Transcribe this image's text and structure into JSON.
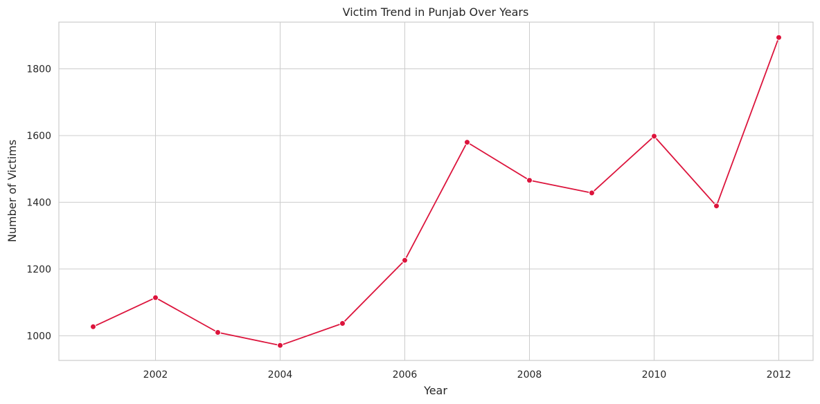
{
  "chart_data": {
    "type": "line",
    "title": "Victim Trend in Punjab Over Years",
    "xlabel": "Year",
    "ylabel": "Number of Victims",
    "x": [
      2001,
      2002,
      2003,
      2004,
      2005,
      2006,
      2007,
      2008,
      2009,
      2010,
      2011,
      2012
    ],
    "series": [
      {
        "values": [
          1027,
          1114,
          1010,
          971,
          1037,
          1226,
          1580,
          1466,
          1428,
          1598,
          1389,
          1894
        ],
        "color": "#dc143c"
      }
    ],
    "xlim": [
      2000.45,
      2012.55
    ],
    "ylim": [
      926,
      1940
    ],
    "xticks": [
      2002,
      2004,
      2006,
      2008,
      2010,
      2012
    ],
    "yticks": [
      1000,
      1200,
      1400,
      1600,
      1800
    ],
    "grid": true,
    "style": {
      "background": "#ffffff",
      "grid_color": "#cccccc",
      "spine_color": "#cccccc",
      "marker": "circle"
    }
  }
}
